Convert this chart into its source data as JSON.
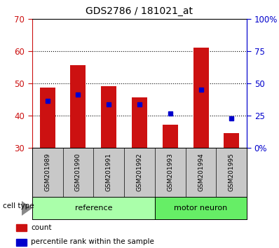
{
  "title": "GDS2786 / 181021_at",
  "samples": [
    "GSM201989",
    "GSM201990",
    "GSM201991",
    "GSM201992",
    "GSM201993",
    "GSM201994",
    "GSM201995"
  ],
  "counts": [
    48.5,
    55.5,
    49.0,
    45.5,
    37.0,
    61.0,
    34.5
  ],
  "percentile_ranks_left": [
    44.5,
    46.5,
    43.5,
    43.5,
    40.5,
    48.0,
    39.0
  ],
  "bar_bottom": 30,
  "count_color": "#cc1111",
  "percentile_color": "#0000cc",
  "ylim_left": [
    30,
    70
  ],
  "ylim_right": [
    0,
    100
  ],
  "yticks_left": [
    30,
    40,
    50,
    60,
    70
  ],
  "grid_yticks": [
    40,
    50,
    60
  ],
  "ytick_labels_right": [
    "0%",
    "25",
    "50",
    "75",
    "100%"
  ],
  "groups": [
    {
      "name": "reference",
      "indices": [
        0,
        1,
        2,
        3
      ],
      "color": "#aaffaa"
    },
    {
      "name": "motor neuron",
      "indices": [
        4,
        5,
        6
      ],
      "color": "#66ee66"
    }
  ],
  "cell_type_label": "cell type",
  "legend_items": [
    {
      "label": "count",
      "color": "#cc1111"
    },
    {
      "label": "percentile rank within the sample",
      "color": "#0000cc"
    }
  ],
  "tick_label_color_left": "#cc1111",
  "tick_label_color_right": "#0000cc",
  "sample_area_color": "#c8c8c8",
  "plot_bg_color": "#ffffff",
  "bar_width": 0.5,
  "fig_width": 3.98,
  "fig_height": 3.54,
  "fig_dpi": 100
}
